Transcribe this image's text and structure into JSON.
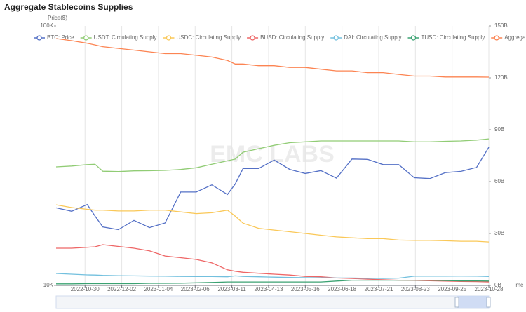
{
  "chart_data": {
    "type": "line",
    "title": "Aggregate Stablecoins Supplies",
    "watermark": "EMC LABS",
    "y_label": "Price($)",
    "x_label": "Time",
    "x": [
      "2022-10-04",
      "2022-10-18",
      "2022-11-01",
      "2022-11-08",
      "2022-11-15",
      "2022-11-29",
      "2022-12-13",
      "2022-12-27",
      "2023-01-10",
      "2023-01-24",
      "2023-02-07",
      "2023-02-21",
      "2023-03-07",
      "2023-03-14",
      "2023-03-21",
      "2023-04-04",
      "2023-04-18",
      "2023-05-02",
      "2023-05-16",
      "2023-05-30",
      "2023-06-13",
      "2023-06-27",
      "2023-07-11",
      "2023-07-25",
      "2023-08-08",
      "2023-08-22",
      "2023-09-05",
      "2023-09-19",
      "2023-10-03",
      "2023-10-17",
      "2023-10-28"
    ],
    "xlim": [
      "2022-10-04",
      "2023-10-28"
    ],
    "xticks": [
      "2022-10-30",
      "2022-12-02",
      "2023-01-04",
      "2023-02-06",
      "2023-03-11",
      "2023-04-13",
      "2023-05-16",
      "2023-06-18",
      "2023-07-21",
      "2023-08-23",
      "2023-09-25",
      "2023-10-28"
    ],
    "ylim": [
      10000,
      100000
    ],
    "log_y": true,
    "yticks": [
      {
        "value": 10000,
        "label": "10K"
      },
      {
        "value": 100000,
        "label": "100K"
      }
    ],
    "y2lim": [
      0,
      150
    ],
    "y2ticks": [
      {
        "value": 0,
        "label": "0B"
      },
      {
        "value": 30,
        "label": "30B"
      },
      {
        "value": 60,
        "label": "60B"
      },
      {
        "value": 90,
        "label": "90B"
      },
      {
        "value": 120,
        "label": "120B"
      },
      {
        "value": 150,
        "label": "150B"
      }
    ],
    "grid": true,
    "series": [
      {
        "name": "BTC: Price",
        "color": "#5470c6",
        "values": [
          19900,
          19300,
          20500,
          18500,
          16800,
          16400,
          17800,
          16700,
          17400,
          22900,
          22900,
          24400,
          22400,
          24600,
          28200,
          28200,
          30400,
          28000,
          27000,
          27700,
          25900,
          30700,
          30600,
          29200,
          29200,
          26000,
          25800,
          27200,
          27500,
          28500,
          34100
        ]
      },
      {
        "name": "USDT: Circulating Supply",
        "color": "#91cc75",
        "axis": "y2",
        "values": [
          68.5,
          69,
          69.8,
          70,
          66,
          65.8,
          66.2,
          66.3,
          66.5,
          67,
          68,
          70,
          72,
          73,
          77,
          79,
          81,
          82.5,
          83,
          83.5,
          83.5,
          83.5,
          83.5,
          83.5,
          83.5,
          83,
          83,
          83.3,
          83.5,
          84,
          84.7
        ]
      },
      {
        "name": "USDC: Circulating Supply",
        "color": "#fac858",
        "axis": "y2",
        "values": [
          46.6,
          45,
          44,
          43.5,
          43.5,
          43,
          43,
          43.5,
          43.5,
          42.5,
          41.5,
          42,
          43.5,
          40,
          36,
          33,
          32,
          31,
          30,
          29,
          28,
          27.5,
          27,
          27,
          26.2,
          26,
          26,
          25.8,
          25.5,
          25.5,
          25.1
        ]
      },
      {
        "name": "BUSD: Circulating Supply",
        "color": "#ee6666",
        "axis": "y2",
        "values": [
          21.5,
          21.5,
          22,
          22.3,
          23.5,
          22.5,
          21.5,
          20,
          17,
          16,
          15,
          13,
          9,
          8.2,
          7.6,
          7,
          6.5,
          6,
          5.2,
          5,
          4.3,
          4,
          3.6,
          3.3,
          3,
          2.9,
          2.7,
          2.5,
          2.3,
          2.2,
          2.0
        ]
      },
      {
        "name": "DAI: Circulating Supply",
        "color": "#73c0de",
        "axis": "y2",
        "values": [
          6.9,
          6.5,
          6.1,
          6,
          5.8,
          5.6,
          5.5,
          5.4,
          5.3,
          5.2,
          5.1,
          5.1,
          5,
          5.5,
          5.2,
          5,
          4.8,
          4.6,
          4.5,
          4.4,
          4.3,
          4.3,
          4.1,
          4.0,
          4.2,
          5.3,
          5.3,
          5.3,
          5.4,
          5.3,
          5.1
        ]
      },
      {
        "name": "TUSD: Circulating Supply",
        "color": "#3ba272",
        "axis": "y2",
        "values": [
          0.9,
          0.9,
          1,
          1,
          1,
          1,
          1,
          1.2,
          1.2,
          1.3,
          1.5,
          1.7,
          2,
          2,
          2,
          2,
          2,
          2,
          2,
          2,
          2.5,
          3,
          3,
          3,
          3,
          3,
          3,
          2.8,
          2.6,
          2.6,
          2.5
        ]
      },
      {
        "name": "Aggregate Stablecoin Cap",
        "color": "#fc8452",
        "axis": "y2",
        "values": [
          142.7,
          141.5,
          140,
          139,
          138,
          137,
          136,
          135,
          134,
          134,
          133,
          132,
          130,
          128,
          128,
          127,
          127,
          126,
          126,
          125,
          124,
          124,
          123,
          123,
          122,
          121,
          121,
          120.5,
          120.5,
          120.5,
          120.4
        ]
      }
    ]
  }
}
